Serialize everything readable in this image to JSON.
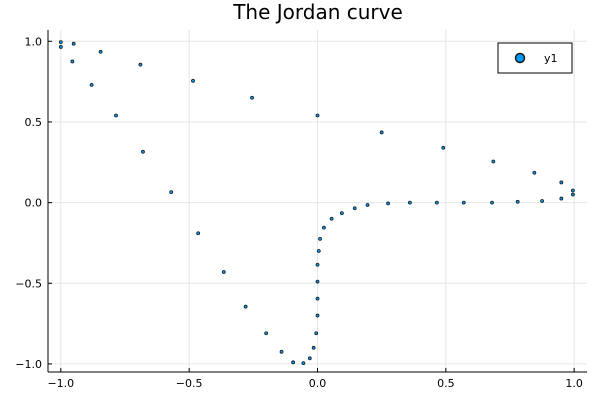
{
  "chart_data": {
    "type": "scatter",
    "title": "The Jordan curve",
    "xlabel": "",
    "ylabel": "",
    "xlim": [
      -1.05,
      1.05
    ],
    "ylim": [
      -1.05,
      1.07
    ],
    "x_ticks": [
      -1.0,
      -0.5,
      0.0,
      0.5,
      1.0
    ],
    "x_tick_labels": [
      "−1.0",
      "−0.5",
      "0.0",
      "0.5",
      "1.0"
    ],
    "y_ticks": [
      -1.0,
      -0.5,
      0.0,
      0.5,
      1.0
    ],
    "y_tick_labels": [
      "−1.0",
      "−0.5",
      "0.0",
      "0.5",
      "1.0"
    ],
    "grid": true,
    "legend": {
      "position": "top-right",
      "entries": [
        "y1"
      ]
    },
    "series": [
      {
        "name": "y1",
        "color": "#009AFA",
        "marker_stroke": "#1a1a1a",
        "points": [
          [
            -1.0,
            0.995
          ],
          [
            -1.0,
            0.965
          ],
          [
            -0.95,
            0.985
          ],
          [
            -0.955,
            0.875
          ],
          [
            -0.845,
            0.935
          ],
          [
            -0.88,
            0.73
          ],
          [
            -0.69,
            0.855
          ],
          [
            -0.785,
            0.54
          ],
          [
            -0.485,
            0.755
          ],
          [
            -0.68,
            0.315
          ],
          [
            -0.255,
            0.65
          ],
          [
            -0.57,
            0.065
          ],
          [
            0.0,
            0.54
          ],
          [
            -0.465,
            -0.19
          ],
          [
            0.25,
            0.435
          ],
          [
            -0.365,
            -0.43
          ],
          [
            0.49,
            0.34
          ],
          [
            -0.28,
            -0.645
          ],
          [
            0.685,
            0.255
          ],
          [
            -0.2,
            -0.81
          ],
          [
            0.845,
            0.185
          ],
          [
            -0.14,
            -0.925
          ],
          [
            0.95,
            0.125
          ],
          [
            -0.095,
            -0.99
          ],
          [
            0.995,
            0.075
          ],
          [
            -0.055,
            -0.995
          ],
          [
            0.995,
            0.05
          ],
          [
            -0.03,
            -0.965
          ],
          [
            0.95,
            0.025
          ],
          [
            -0.015,
            -0.9
          ],
          [
            0.875,
            0.01
          ],
          [
            -0.005,
            -0.81
          ],
          [
            0.78,
            0.005
          ],
          [
            0.0,
            -0.7
          ],
          [
            0.68,
            0.0
          ],
          [
            0.0,
            -0.595
          ],
          [
            0.57,
            0.0
          ],
          [
            0.0,
            -0.49
          ],
          [
            0.465,
            0.0
          ],
          [
            0.0,
            -0.385
          ],
          [
            0.36,
            0.0
          ],
          [
            0.005,
            -0.3
          ],
          [
            0.275,
            -0.005
          ],
          [
            0.01,
            -0.225
          ],
          [
            0.195,
            -0.015
          ],
          [
            0.025,
            -0.155
          ],
          [
            0.145,
            -0.035
          ],
          [
            0.055,
            -0.1
          ],
          [
            0.095,
            -0.065
          ]
        ]
      }
    ]
  }
}
